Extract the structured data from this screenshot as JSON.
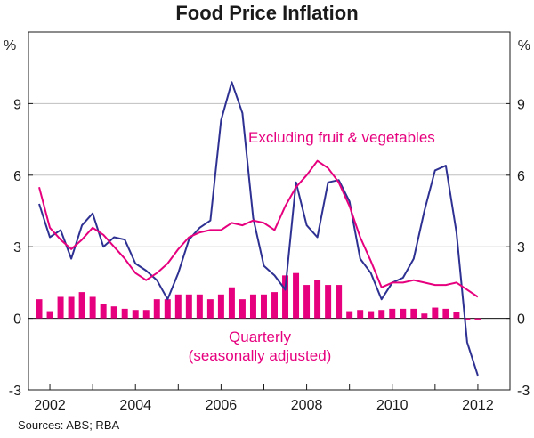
{
  "chart_data": {
    "type": "line+bar",
    "title": "Food Price Inflation",
    "y_unit_label": "%",
    "ylim": [
      -3,
      12
    ],
    "yticks": [
      -3,
      0,
      3,
      6,
      9
    ],
    "x_range": [
      2001.5,
      2012.75
    ],
    "x_ticks": [
      2002,
      2004,
      2006,
      2008,
      2010,
      2012
    ],
    "x_tick_labels": [
      "2002",
      "2004",
      "2006",
      "2008",
      "2010",
      "2012"
    ],
    "annotations": {
      "excluding_label": "Excluding fruit & vegetables",
      "quarterly_label_line1": "Quarterly",
      "quarterly_label_line2": "(seasonally adjusted)"
    },
    "colors": {
      "food": "#2e3192",
      "excluding": "#e6007e",
      "quarterly": "#e6007e",
      "axis": "#1a1a1a"
    },
    "series": [
      {
        "name": "Food",
        "kind": "line",
        "x": [
          2001.75,
          2002.0,
          2002.25,
          2002.5,
          2002.75,
          2003.0,
          2003.25,
          2003.5,
          2003.75,
          2004.0,
          2004.25,
          2004.5,
          2004.75,
          2005.0,
          2005.25,
          2005.5,
          2005.75,
          2006.0,
          2006.25,
          2006.5,
          2006.75,
          2007.0,
          2007.25,
          2007.5,
          2007.75,
          2008.0,
          2008.25,
          2008.5,
          2008.75,
          2009.0,
          2009.25,
          2009.5,
          2009.75,
          2010.0,
          2010.25,
          2010.5,
          2010.75,
          2011.0,
          2011.25,
          2011.5,
          2011.75,
          2012.0
        ],
        "values": [
          4.8,
          3.4,
          3.7,
          2.5,
          3.9,
          4.4,
          3.0,
          3.4,
          3.3,
          2.3,
          2.0,
          1.6,
          0.8,
          1.9,
          3.3,
          3.8,
          4.1,
          8.3,
          9.9,
          8.6,
          4.2,
          2.2,
          1.8,
          1.2,
          5.7,
          3.9,
          3.4,
          5.7,
          5.8,
          4.9,
          2.5,
          1.9,
          0.8,
          1.5,
          1.7,
          2.5,
          4.5,
          6.2,
          6.4,
          3.6,
          -1.0,
          -2.4
        ]
      },
      {
        "name": "Excluding fruit & vegetables",
        "kind": "line",
        "x": [
          2001.75,
          2002.0,
          2002.25,
          2002.5,
          2002.75,
          2003.0,
          2003.25,
          2003.5,
          2003.75,
          2004.0,
          2004.25,
          2004.5,
          2004.75,
          2005.0,
          2005.25,
          2005.5,
          2005.75,
          2006.0,
          2006.25,
          2006.5,
          2006.75,
          2007.0,
          2007.25,
          2007.5,
          2007.75,
          2008.0,
          2008.25,
          2008.5,
          2008.75,
          2009.0,
          2009.25,
          2009.5,
          2009.75,
          2010.0,
          2010.25,
          2010.5,
          2010.75,
          2011.0,
          2011.25,
          2011.5,
          2011.75,
          2012.0
        ],
        "values": [
          5.5,
          3.8,
          3.3,
          2.9,
          3.3,
          3.8,
          3.5,
          3.0,
          2.5,
          1.9,
          1.6,
          1.9,
          2.3,
          2.9,
          3.4,
          3.6,
          3.7,
          3.7,
          4.0,
          3.9,
          4.1,
          4.0,
          3.7,
          4.7,
          5.5,
          6.0,
          6.6,
          6.3,
          5.7,
          4.7,
          3.4,
          2.4,
          1.3,
          1.5,
          1.5,
          1.6,
          1.5,
          1.4,
          1.4,
          1.5,
          1.2,
          0.9
        ]
      },
      {
        "name": "Quarterly (seasonally adjusted)",
        "kind": "bar",
        "x": [
          2001.75,
          2002.0,
          2002.25,
          2002.5,
          2002.75,
          2003.0,
          2003.25,
          2003.5,
          2003.75,
          2004.0,
          2004.25,
          2004.5,
          2004.75,
          2005.0,
          2005.25,
          2005.5,
          2005.75,
          2006.0,
          2006.25,
          2006.5,
          2006.75,
          2007.0,
          2007.25,
          2007.5,
          2007.75,
          2008.0,
          2008.25,
          2008.5,
          2008.75,
          2009.0,
          2009.25,
          2009.5,
          2009.75,
          2010.0,
          2010.25,
          2010.5,
          2010.75,
          2011.0,
          2011.25,
          2011.5,
          2011.75,
          2012.0
        ],
        "values": [
          0.8,
          0.3,
          0.9,
          0.9,
          1.1,
          0.9,
          0.6,
          0.5,
          0.4,
          0.35,
          0.35,
          0.8,
          0.8,
          1.0,
          1.0,
          1.0,
          0.8,
          1.0,
          1.3,
          0.8,
          1.0,
          1.0,
          1.1,
          1.8,
          1.9,
          1.4,
          1.6,
          1.4,
          1.4,
          0.3,
          0.35,
          0.3,
          0.35,
          0.4,
          0.4,
          0.4,
          0.2,
          0.45,
          0.4,
          0.25,
          -0.05,
          -0.05
        ]
      }
    ],
    "source": "Sources: ABS; RBA"
  }
}
